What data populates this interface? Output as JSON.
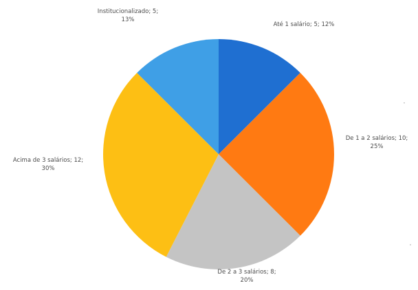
{
  "chart_data": {
    "type": "pie",
    "start_angle_deg": 90,
    "direction": "clockwise",
    "slices": [
      {
        "label": "Até 1 salário; 5; 12%",
        "value": 5,
        "percent": 12,
        "color": "#1f6fd1"
      },
      {
        "label": "De 1 a 2 salários; 10; 25%",
        "value": 10,
        "percent": 25,
        "color": "#ff7a12"
      },
      {
        "label": "De 2 a 3 salários; 8; 20%",
        "value": 8,
        "percent": 20,
        "color": "#c4c4c4"
      },
      {
        "label": "Acima de 3 salários; 12; 30%",
        "value": 12,
        "percent": 30,
        "color": "#fdbf14"
      },
      {
        "label": "Institucionalizado; 5; 13%",
        "value": 5,
        "percent": 13,
        "color": "#3f9fe6"
      }
    ],
    "label_lines": [
      [
        "Até 1 salário; 5; 12%"
      ],
      [
        "De 1 a 2 salários; 10;",
        "25%"
      ],
      [
        "De 2 a 3 salários; 8;",
        "20%"
      ],
      [
        "Acima de 3 salários; 12;",
        "30%"
      ],
      [
        "Institucionalizado; 5;",
        "13%"
      ]
    ]
  }
}
